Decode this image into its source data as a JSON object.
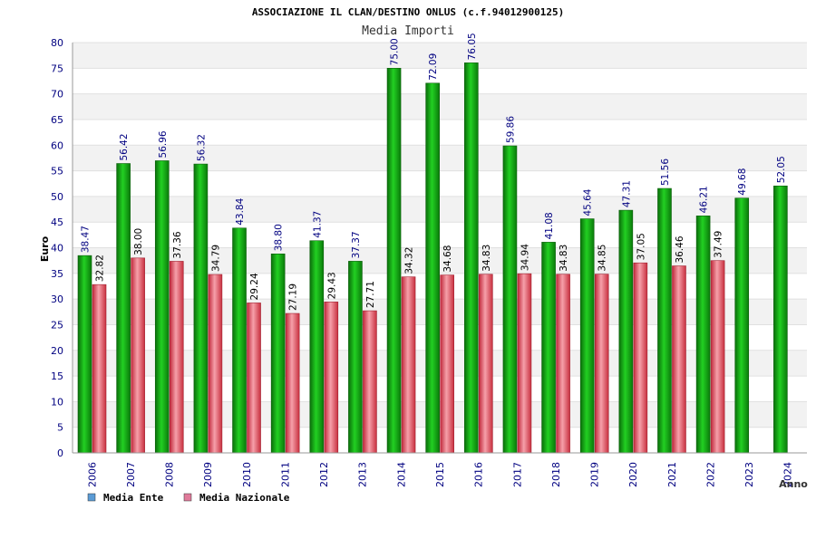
{
  "chart_data": {
    "type": "bar",
    "title": "ASSOCIAZIONE IL CLAN/DESTINO ONLUS (c.f.94012900125)",
    "subtitle": "Media Importi",
    "xlabel": "Anno",
    "ylabel": "Euro",
    "ylim": [
      0,
      80
    ],
    "ytick_step": 5,
    "yticks": [
      "0",
      "5",
      "10",
      "15",
      "20",
      "25",
      "30",
      "35",
      "40",
      "45",
      "50",
      "55",
      "60",
      "65",
      "70",
      "75",
      "80"
    ],
    "grid": true,
    "legend_placement": "bottom-left",
    "categories": [
      "2006",
      "2007",
      "2008",
      "2009",
      "2010",
      "2011",
      "2012",
      "2013",
      "2014",
      "2015",
      "2016",
      "2017",
      "2018",
      "2019",
      "2020",
      "2021",
      "2022",
      "2023",
      "2024"
    ],
    "series": [
      {
        "name": "Media Ente",
        "legend_color": "#5b9bd5",
        "bar_color": "#1aa81a",
        "label_color": "#000080",
        "values": [
          38.47,
          56.42,
          56.96,
          56.32,
          43.84,
          38.8,
          41.37,
          37.37,
          75.0,
          72.09,
          76.05,
          59.86,
          41.08,
          45.64,
          47.31,
          51.56,
          46.21,
          49.68,
          52.05
        ],
        "labels": [
          "38.47",
          "56.42",
          "56.96",
          "56.32",
          "43.84",
          "38.80",
          "41.37",
          "37.37",
          "75.00",
          "72.09",
          "76.05",
          "59.86",
          "41.08",
          "45.64",
          "47.31",
          "51.56",
          "46.21",
          "49.68",
          "52.05"
        ]
      },
      {
        "name": "Media Nazionale",
        "legend_color": "#e07a9a",
        "bar_color": "#e8505e",
        "label_color": "#000000",
        "values": [
          32.82,
          38.0,
          37.36,
          34.79,
          29.24,
          27.19,
          29.43,
          27.71,
          34.32,
          34.68,
          34.83,
          34.94,
          34.83,
          34.85,
          37.05,
          36.46,
          37.49,
          null,
          null
        ],
        "labels": [
          "32.82",
          "38.00",
          "37.36",
          "34.79",
          "29.24",
          "27.19",
          "29.43",
          "27.71",
          "34.32",
          "34.68",
          "34.83",
          "34.94",
          "34.83",
          "34.85",
          "37.05",
          "36.46",
          "37.49",
          "",
          ""
        ]
      }
    ],
    "colors": {
      "axis_text": "#000080",
      "grid_band": "#f2f2f2",
      "grid_line": "#e0e0e0",
      "axis_line": "#999999"
    }
  }
}
